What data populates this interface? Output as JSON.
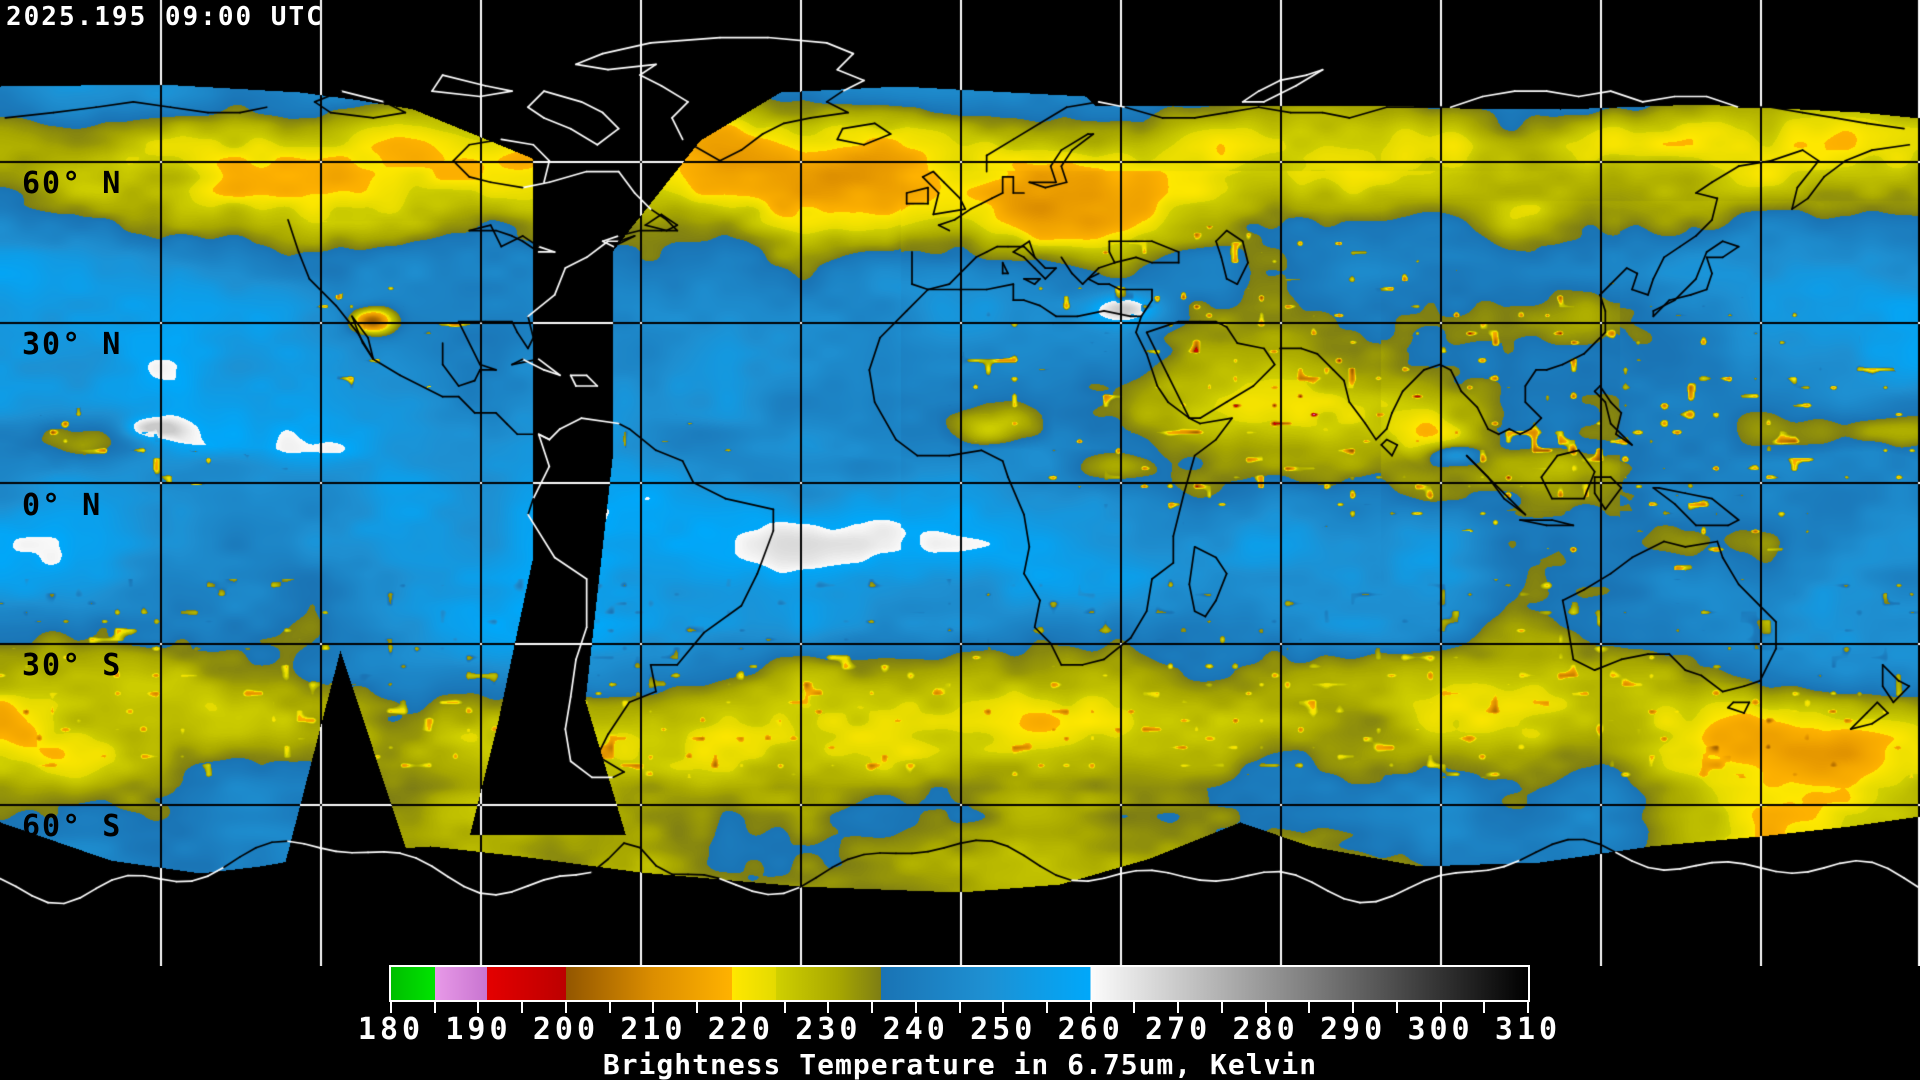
{
  "header": {
    "timestamp": "2025.195 09:00 UTC",
    "timestamp_color": "#ffffff"
  },
  "map": {
    "projection": "equirectangular",
    "latitude_labels": [
      {
        "text": "60° N",
        "lat": 60
      },
      {
        "text": "30° N",
        "lat": 30
      },
      {
        "text": "0° N",
        "lat": 0
      },
      {
        "text": "30° S",
        "lat": -30
      },
      {
        "text": "60° S",
        "lat": -60
      }
    ],
    "grid": {
      "lon_step_deg": 30,
      "lat_step_deg": 30,
      "color_over_data": "#000000",
      "color_over_void": "#ffffff"
    },
    "coastline": {
      "color_over_data": "#000000",
      "color_over_void": "#ffffff"
    },
    "no_data_color": "#000000",
    "label_color": "#000000"
  },
  "colorbar": {
    "title": "Brightness Temperature in 6.75um, Kelvin",
    "unit": "Kelvin",
    "min": 180,
    "max": 310,
    "tick_step": 10,
    "minor_tick_step": 5,
    "tick_labels": [
      "180",
      "190",
      "200",
      "210",
      "220",
      "230",
      "240",
      "250",
      "260",
      "270",
      "280",
      "290",
      "300",
      "310"
    ],
    "outline_color": "#ffffff",
    "stops": [
      {
        "v": 180,
        "c": "#00be00"
      },
      {
        "v": 185,
        "c": "#00e400"
      },
      {
        "v": 185,
        "c": "#e89ae8"
      },
      {
        "v": 191,
        "c": "#c874d0"
      },
      {
        "v": 191,
        "c": "#e40000"
      },
      {
        "v": 200,
        "c": "#bc0000"
      },
      {
        "v": 200,
        "c": "#925600"
      },
      {
        "v": 210,
        "c": "#dc8e00"
      },
      {
        "v": 219,
        "c": "#ffb200"
      },
      {
        "v": 219,
        "c": "#ffe800"
      },
      {
        "v": 224,
        "c": "#e4da00"
      },
      {
        "v": 224,
        "c": "#d0d000"
      },
      {
        "v": 231,
        "c": "#a8a800"
      },
      {
        "v": 236,
        "c": "#7e7e14"
      },
      {
        "v": 236,
        "c": "#1a73b4"
      },
      {
        "v": 248,
        "c": "#1e90d2"
      },
      {
        "v": 260,
        "c": "#00a8fa"
      },
      {
        "v": 260,
        "c": "#fcfcfc"
      },
      {
        "v": 310,
        "c": "#000000"
      }
    ]
  }
}
